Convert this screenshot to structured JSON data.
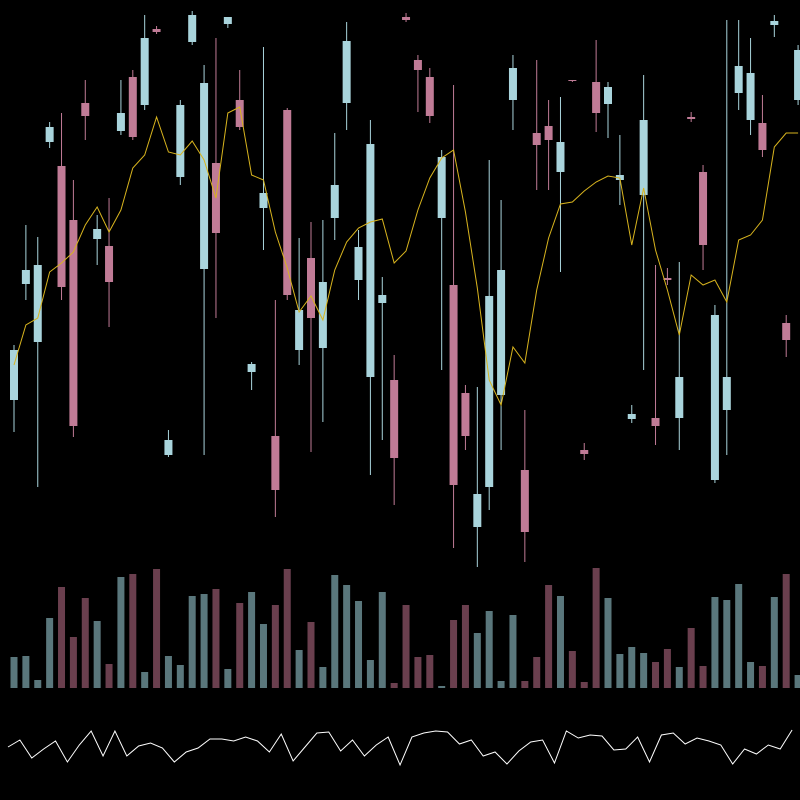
{
  "chart_data": [
    {
      "type": "candlestick",
      "open": [
        400,
        516,
        458,
        658,
        634,
        580,
        697,
        561,
        554,
        669,
        723,
        695,
        771,
        345,
        623,
        758,
        531,
        637,
        776,
        700,
        428,
        592,
        364,
        690,
        450,
        542,
        452,
        582,
        697,
        520,
        423,
        497,
        420,
        783,
        740,
        723,
        582,
        515,
        407,
        273,
        313,
        405,
        700,
        330,
        667,
        674,
        628,
        720,
        350,
        718,
        696,
        620,
        381,
        605,
        382,
        522,
        382,
        683,
        628,
        320,
        390,
        707,
        680,
        677,
        775,
        477,
        700
      ],
      "high": [
        455,
        575,
        563,
        678,
        687,
        620,
        720,
        585,
        602,
        720,
        730,
        785,
        774,
        370,
        700,
        789,
        735,
        762,
        783,
        730,
        438,
        753,
        500,
        692,
        562,
        578,
        580,
        667,
        778,
        570,
        680,
        523,
        445,
        787,
        745,
        732,
        650,
        715,
        415,
        413,
        640,
        600,
        745,
        390,
        740,
        700,
        703,
        720,
        357,
        760,
        718,
        665,
        395,
        725,
        535,
        532,
        538,
        688,
        635,
        495,
        780,
        780,
        762,
        705,
        785,
        485,
        755
      ],
      "low": [
        368,
        500,
        313,
        652,
        500,
        363,
        660,
        535,
        473,
        665,
        660,
        690,
        766,
        343,
        615,
        755,
        345,
        482,
        772,
        670,
        410,
        550,
        283,
        500,
        435,
        348,
        378,
        560,
        670,
        500,
        325,
        360,
        295,
        778,
        688,
        677,
        430,
        252,
        350,
        233,
        290,
        350,
        670,
        238,
        610,
        610,
        528,
        718,
        340,
        668,
        662,
        595,
        377,
        430,
        355,
        515,
        350,
        678,
        530,
        317,
        345,
        690,
        665,
        643,
        763,
        443,
        695
      ],
      "close": [
        450,
        530,
        535,
        673,
        513,
        374,
        684,
        571,
        518,
        687,
        663,
        762,
        768,
        360,
        695,
        785,
        717,
        567,
        783,
        673,
        436,
        607,
        310,
        505,
        490,
        482,
        518,
        615,
        759,
        553,
        656,
        505,
        342,
        780,
        730,
        684,
        643,
        315,
        364,
        306,
        504,
        530,
        732,
        268,
        655,
        660,
        658,
        719,
        346,
        687,
        713,
        625,
        386,
        680,
        374,
        520,
        423,
        681,
        555,
        485,
        423,
        734,
        727,
        650,
        779,
        460,
        750
      ],
      "up_color": "#a9d4dc",
      "down_color": "#c07b96",
      "ma": {
        "color": "#d8b41e",
        "values": [
          435,
          475,
          482,
          528,
          537,
          548,
          575,
          593,
          568,
          590,
          632,
          645,
          683,
          648,
          645,
          659,
          640,
          602,
          687,
          693,
          625,
          620,
          568,
          532,
          488,
          504,
          480,
          530,
          558,
          572,
          578,
          581,
          537,
          549,
          590,
          622,
          642,
          650,
          588,
          512,
          420,
          395,
          453,
          437,
          510,
          562,
          596,
          598,
          609,
          618,
          624,
          622,
          555,
          612,
          550,
          510,
          465,
          525,
          515,
          520,
          498,
          560,
          565,
          580,
          653,
          667,
          667
        ]
      },
      "ylim": [
        230,
        790
      ]
    },
    {
      "type": "bar",
      "values": [
        31,
        32,
        8,
        70,
        101,
        51,
        90,
        67,
        24,
        111,
        114,
        16,
        119,
        32,
        23,
        92,
        94,
        99,
        19,
        85,
        96,
        64,
        83,
        119,
        38,
        66,
        21,
        113,
        103,
        87,
        28,
        96,
        5,
        83,
        31,
        33,
        2,
        68,
        83,
        55,
        77,
        7,
        73,
        7,
        31,
        103,
        92,
        37,
        6,
        120,
        90,
        34,
        41,
        35,
        26,
        39,
        21,
        60,
        22,
        91,
        88,
        104,
        26,
        22,
        91,
        114,
        13
      ],
      "up_color": "#5a777c",
      "down_color": "#6a3f4e",
      "ylim": [
        0,
        120
      ]
    },
    {
      "type": "line",
      "values": [
        53,
        60,
        42,
        51,
        59,
        38,
        55,
        69,
        44,
        69,
        44,
        54,
        57,
        52,
        38,
        48,
        52,
        61,
        61,
        59,
        63,
        59,
        48,
        66,
        39,
        53,
        67,
        68,
        49,
        60,
        44,
        55,
        63,
        35,
        63,
        67,
        69,
        68,
        56,
        60,
        44,
        48,
        36,
        49,
        58,
        60,
        37,
        69,
        62,
        65,
        64,
        50,
        51,
        63,
        38,
        65,
        67,
        56,
        62,
        59,
        55,
        36,
        51,
        46,
        55,
        51,
        70
      ],
      "color": "#ffffff",
      "ylim": [
        30,
        75
      ]
    }
  ]
}
